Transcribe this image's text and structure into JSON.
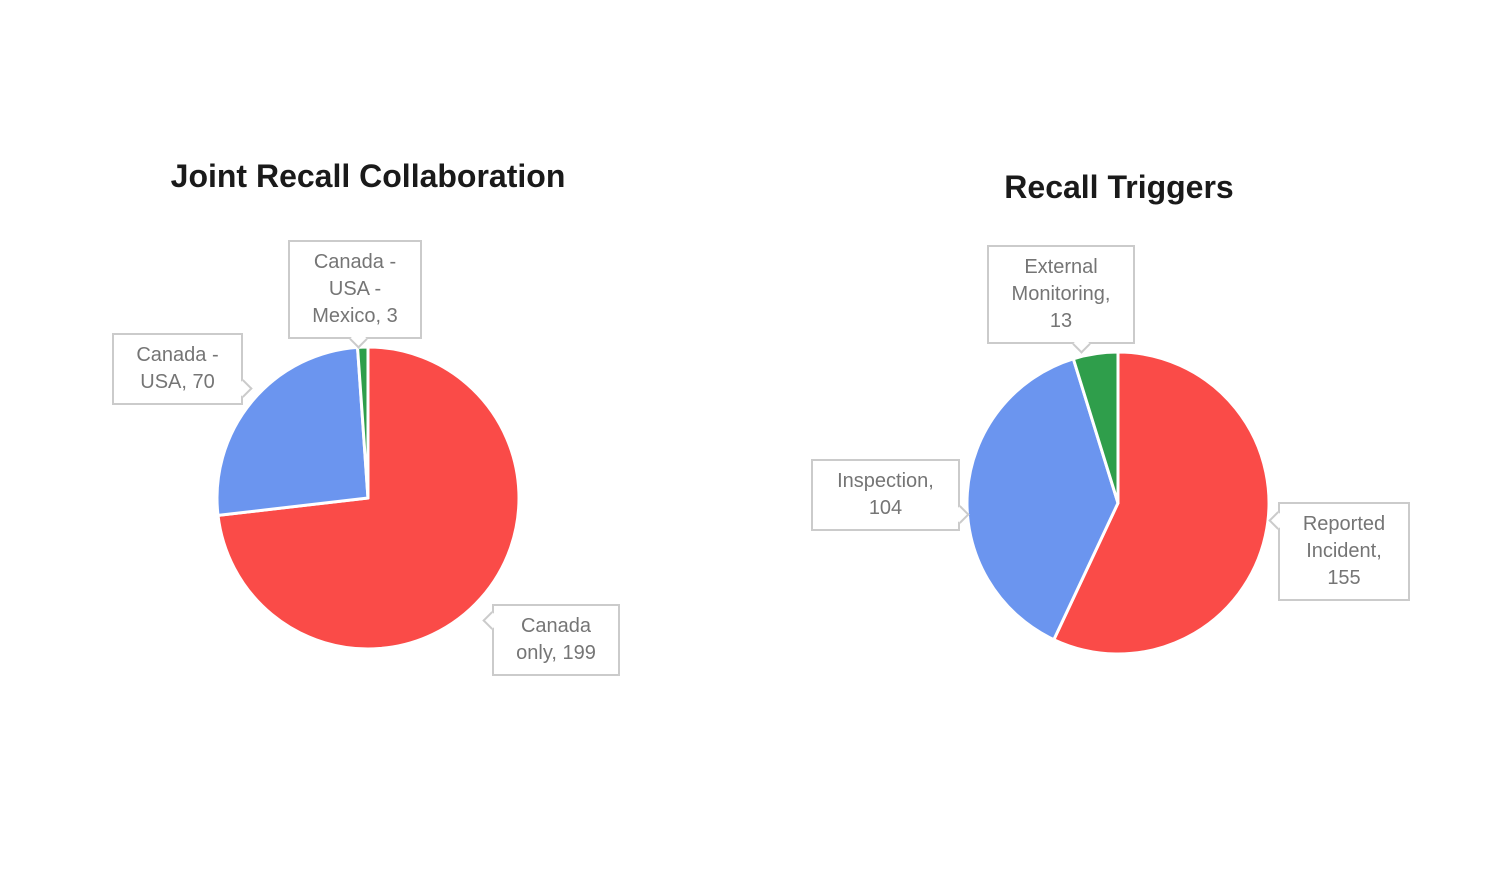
{
  "page": {
    "background": "#ffffff"
  },
  "palette": {
    "red": "#fa4b48",
    "blue": "#6b95ef",
    "green": "#2f9e4b",
    "label_text": "#757575",
    "label_border": "#cbcbcb",
    "title_text": "#1a1a1a"
  },
  "chart_data": [
    {
      "type": "pie",
      "title": "Joint Recall Collaboration",
      "categories": [
        "Canada only",
        "Canada - USA",
        "Canada - USA - Mexico"
      ],
      "values": [
        199,
        70,
        3
      ],
      "colors": [
        "#fa4b48",
        "#6b95ef",
        "#2f9e4b"
      ],
      "total": 272,
      "start_angle_deg": 0,
      "direction": "clockwise",
      "legend": "none",
      "labels": "callout",
      "callouts": [
        {
          "slice": "Canada - USA - Mexico",
          "value": 3,
          "lines": [
            "Canada -",
            "USA -",
            "Mexico, 3"
          ]
        },
        {
          "slice": "Canada - USA",
          "value": 70,
          "lines": [
            "Canada -",
            "USA, 70"
          ]
        },
        {
          "slice": "Canada only",
          "value": 199,
          "lines": [
            "Canada",
            "only, 199"
          ]
        }
      ]
    },
    {
      "type": "pie",
      "title": "Recall Triggers",
      "categories": [
        "Reported Incident",
        "Inspection",
        "External Monitoring"
      ],
      "values": [
        155,
        104,
        13
      ],
      "colors": [
        "#fa4b48",
        "#6b95ef",
        "#2f9e4b"
      ],
      "total": 272,
      "start_angle_deg": 0,
      "direction": "clockwise",
      "legend": "none",
      "labels": "callout",
      "callouts": [
        {
          "slice": "External Monitoring",
          "value": 13,
          "lines": [
            "External",
            "Monitoring,",
            "13"
          ]
        },
        {
          "slice": "Inspection",
          "value": 104,
          "lines": [
            "Inspection,",
            "104"
          ]
        },
        {
          "slice": "Reported Incident",
          "value": 155,
          "lines": [
            "Reported",
            "Incident,",
            "155"
          ]
        }
      ]
    }
  ]
}
